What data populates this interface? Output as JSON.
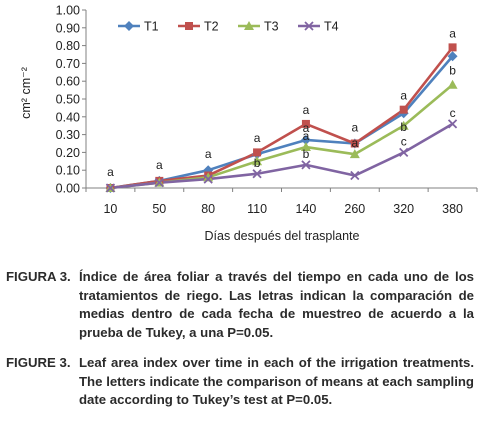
{
  "chart_data": {
    "type": "line",
    "categories": [
      "10",
      "50",
      "80",
      "110",
      "140",
      "260",
      "320",
      "380"
    ],
    "ylim": [
      0,
      1.0
    ],
    "yticks": [
      "0.00",
      "0.10",
      "0.20",
      "0.30",
      "0.40",
      "0.50",
      "0.60",
      "0.70",
      "0.80",
      "0.90",
      "1.00"
    ],
    "ylabel": "cm² cm⁻²",
    "xlabel": "Días después del trasplante",
    "legend_position": "top",
    "grid": false,
    "series": [
      {
        "name": "T1",
        "color": "#4f81bd",
        "marker": "diamond",
        "values": [
          0.0,
          0.04,
          0.1,
          0.19,
          0.27,
          0.25,
          0.42,
          0.74
        ],
        "labels": [
          "a",
          "a",
          "a",
          "a",
          "a",
          "a",
          "b",
          "b"
        ]
      },
      {
        "name": "T2",
        "color": "#c0504d",
        "marker": "square",
        "values": [
          0.0,
          0.04,
          0.07,
          0.2,
          0.36,
          0.25,
          0.44,
          0.79
        ],
        "labels": [
          "",
          "",
          "",
          "",
          "a",
          "",
          "a",
          "a"
        ]
      },
      {
        "name": "T3",
        "color": "#9bbb59",
        "marker": "triangle",
        "values": [
          0.0,
          0.03,
          0.06,
          0.15,
          0.23,
          0.19,
          0.35,
          0.58
        ],
        "labels": [
          "",
          "",
          "",
          "",
          "a",
          "a",
          "",
          ""
        ]
      },
      {
        "name": "T4",
        "color": "#8064a2",
        "marker": "x",
        "values": [
          0.0,
          0.03,
          0.05,
          0.08,
          0.13,
          0.07,
          0.2,
          0.36
        ],
        "labels": [
          "",
          "",
          "",
          "b",
          "b",
          "",
          "c",
          "c"
        ]
      }
    ]
  },
  "captions": {
    "spanish_label": "FIGURA 3.",
    "spanish_text": "Índice de área foliar a través del tiempo en cada uno de los tratamientos de riego. Las letras indican la comparación de medias dentro de cada fecha de muestreo de acuerdo a la prueba de Tukey, a una P=0.05.",
    "english_label": "FIGURE 3.",
    "english_text": "Leaf area index over time in each of the irrigation treatments. The letters indicate the comparison of means at each sampling date according to Tukey’s test at P=0.05."
  }
}
